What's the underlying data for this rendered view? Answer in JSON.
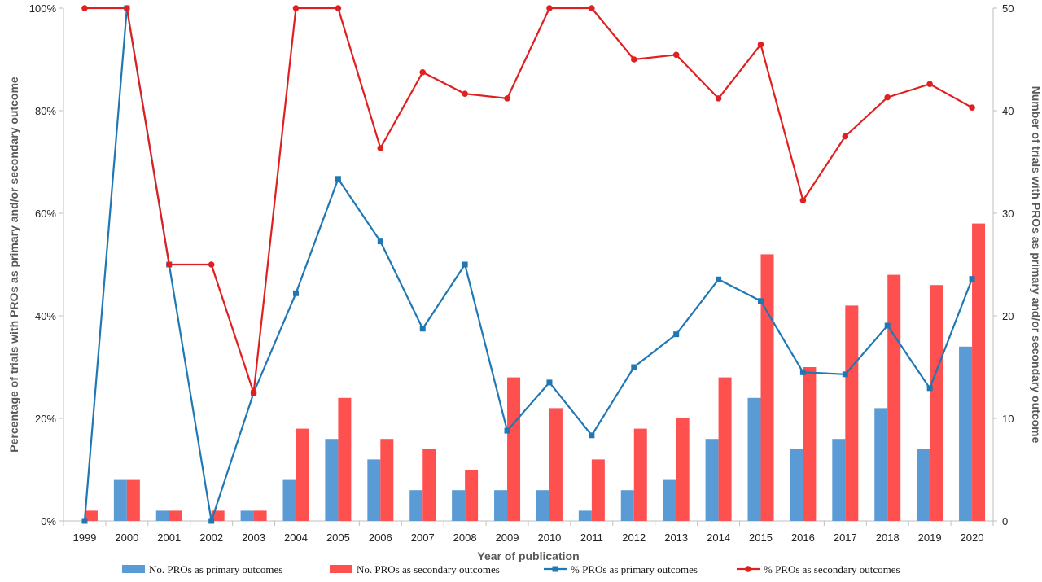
{
  "chart_data": {
    "type": "bar",
    "categories": [
      "1999",
      "2000",
      "2001",
      "2002",
      "2003",
      "2004",
      "2005",
      "2006",
      "2007",
      "2008",
      "2009",
      "2010",
      "2011",
      "2012",
      "2013",
      "2014",
      "2015",
      "2016",
      "2017",
      "2018",
      "2019",
      "2020"
    ],
    "series": [
      {
        "name": "No. PROs as primary outcomes",
        "type": "bar",
        "axis": "right",
        "color": "#5B9BD5",
        "values": [
          0,
          4,
          1,
          0,
          1,
          4,
          8,
          6,
          3,
          3,
          3,
          3,
          1,
          3,
          4,
          8,
          12,
          7,
          8,
          11,
          7,
          17
        ]
      },
      {
        "name": "No. PROs as secondary outcomes",
        "type": "bar",
        "axis": "right",
        "color": "#FF5050",
        "values": [
          1,
          4,
          1,
          1,
          1,
          9,
          12,
          8,
          7,
          5,
          14,
          11,
          6,
          9,
          10,
          14,
          26,
          15,
          21,
          24,
          23,
          29
        ]
      },
      {
        "name": "% PROs as primary outcomes",
        "type": "line",
        "axis": "left",
        "color": "#1F78B4",
        "marker": "square",
        "values": [
          0,
          100,
          50,
          0,
          25,
          44.4,
          66.7,
          54.5,
          37.5,
          50,
          17.6,
          27,
          16.7,
          30,
          36.4,
          47.1,
          42.9,
          29,
          28.6,
          38.1,
          25.9,
          47.2
        ]
      },
      {
        "name": "% PROs as secondary outcomes",
        "type": "line",
        "axis": "left",
        "color": "#E02020",
        "marker": "circle",
        "values": [
          100,
          100,
          50,
          50,
          25,
          100,
          100,
          72.7,
          87.5,
          83.3,
          82.4,
          100,
          100,
          90,
          90.9,
          82.4,
          92.9,
          62.5,
          75,
          82.6,
          85.2,
          80.6
        ]
      }
    ],
    "xlabel": "Year of publication",
    "ylabel": "Percentage of trials with PROs as primary and/or secondary outcome",
    "y2label": "Number of trials with PROs as primary and/or secondary outcome",
    "ylim": [
      0,
      100
    ],
    "y2lim": [
      0,
      50
    ],
    "yticks": [
      "0%",
      "20%",
      "40%",
      "60%",
      "80%",
      "100%"
    ],
    "y2ticks": [
      "0",
      "10",
      "20",
      "30",
      "40",
      "50"
    ],
    "grid": false,
    "legend": "bottom"
  }
}
